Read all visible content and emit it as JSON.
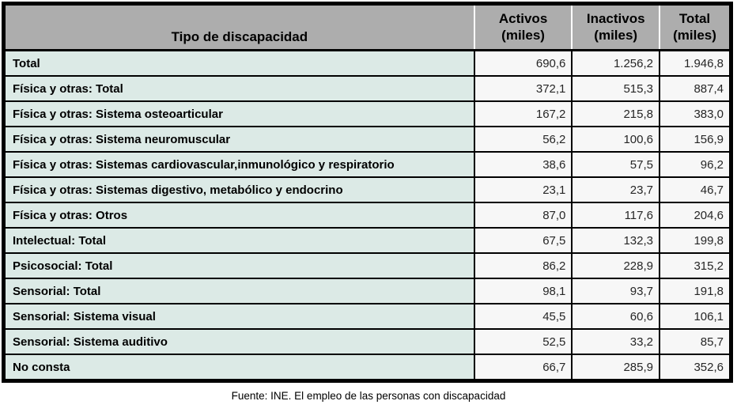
{
  "table": {
    "title_column": "Tipo de discapacidad",
    "columns": [
      {
        "line1": "Activos",
        "line2": "(miles)"
      },
      {
        "line1": "Inactivos",
        "line2": "(miles)"
      },
      {
        "line1": "Total",
        "line2": "(miles)"
      }
    ],
    "rows": [
      {
        "label": "Total",
        "activos": "690,6",
        "inactivos": "1.256,2",
        "total": "1.946,8"
      },
      {
        "label": "Física y otras: Total",
        "activos": "372,1",
        "inactivos": "515,3",
        "total": "887,4"
      },
      {
        "label": "Física y otras: Sistema osteoarticular",
        "activos": "167,2",
        "inactivos": "215,8",
        "total": "383,0"
      },
      {
        "label": "Física y otras: Sistema neuromuscular",
        "activos": "56,2",
        "inactivos": "100,6",
        "total": "156,9"
      },
      {
        "label": "Física y otras: Sistemas cardiovascular,inmunológico y respiratorio",
        "activos": "38,6",
        "inactivos": "57,5",
        "total": "96,2"
      },
      {
        "label": "Física y otras: Sistemas digestivo, metabólico y endocrino",
        "activos": "23,1",
        "inactivos": "23,7",
        "total": "46,7"
      },
      {
        "label": "Física y otras: Otros",
        "activos": "87,0",
        "inactivos": "117,6",
        "total": "204,6"
      },
      {
        "label": "Intelectual: Total",
        "activos": "67,5",
        "inactivos": "132,3",
        "total": "199,8"
      },
      {
        "label": "Psicosocial: Total",
        "activos": "86,2",
        "inactivos": "228,9",
        "total": "315,2"
      },
      {
        "label": "Sensorial: Total",
        "activos": "98,1",
        "inactivos": "93,7",
        "total": "191,8"
      },
      {
        "label": "Sensorial: Sistema visual",
        "activos": "45,5",
        "inactivos": "60,6",
        "total": "106,1"
      },
      {
        "label": "Sensorial: Sistema auditivo",
        "activos": "52,5",
        "inactivos": "33,2",
        "total": "85,7"
      },
      {
        "label": "No consta",
        "activos": "66,7",
        "inactivos": "285,9",
        "total": "352,6"
      }
    ]
  },
  "footer": {
    "source": "Fuente: INE. El empleo de las personas con discapacidad"
  },
  "colors": {
    "header_bg": "#adadad",
    "label_bg": "#dceae6",
    "value_bg": "#f7f7f7",
    "border": "#000000",
    "header_divider": "#ffffff"
  },
  "chart_data": {
    "type": "table",
    "title": "Tipo de discapacidad",
    "columns": [
      "Tipo de discapacidad",
      "Activos (miles)",
      "Inactivos (miles)",
      "Total (miles)"
    ],
    "rows": [
      [
        "Total",
        690.6,
        1256.2,
        1946.8
      ],
      [
        "Física y otras: Total",
        372.1,
        515.3,
        887.4
      ],
      [
        "Física y otras: Sistema osteoarticular",
        167.2,
        215.8,
        383.0
      ],
      [
        "Física y otras: Sistema neuromuscular",
        56.2,
        100.6,
        156.9
      ],
      [
        "Física y otras: Sistemas cardiovascular,inmunológico y respiratorio",
        38.6,
        57.5,
        96.2
      ],
      [
        "Física y otras: Sistemas digestivo, metabólico y endocrino",
        23.1,
        23.7,
        46.7
      ],
      [
        "Física y otras: Otros",
        87.0,
        117.6,
        204.6
      ],
      [
        "Intelectual: Total",
        67.5,
        132.3,
        199.8
      ],
      [
        "Psicosocial: Total",
        86.2,
        228.9,
        315.2
      ],
      [
        "Sensorial: Total",
        98.1,
        93.7,
        191.8
      ],
      [
        "Sensorial: Sistema visual",
        45.5,
        60.6,
        106.1
      ],
      [
        "Sensorial: Sistema auditivo",
        52.5,
        33.2,
        85.7
      ],
      [
        "No consta",
        66.7,
        285.9,
        352.6
      ]
    ],
    "annotations": [
      "Fuente: INE. El empleo de las personas con discapacidad"
    ],
    "legend_position": "none",
    "grid": true
  }
}
